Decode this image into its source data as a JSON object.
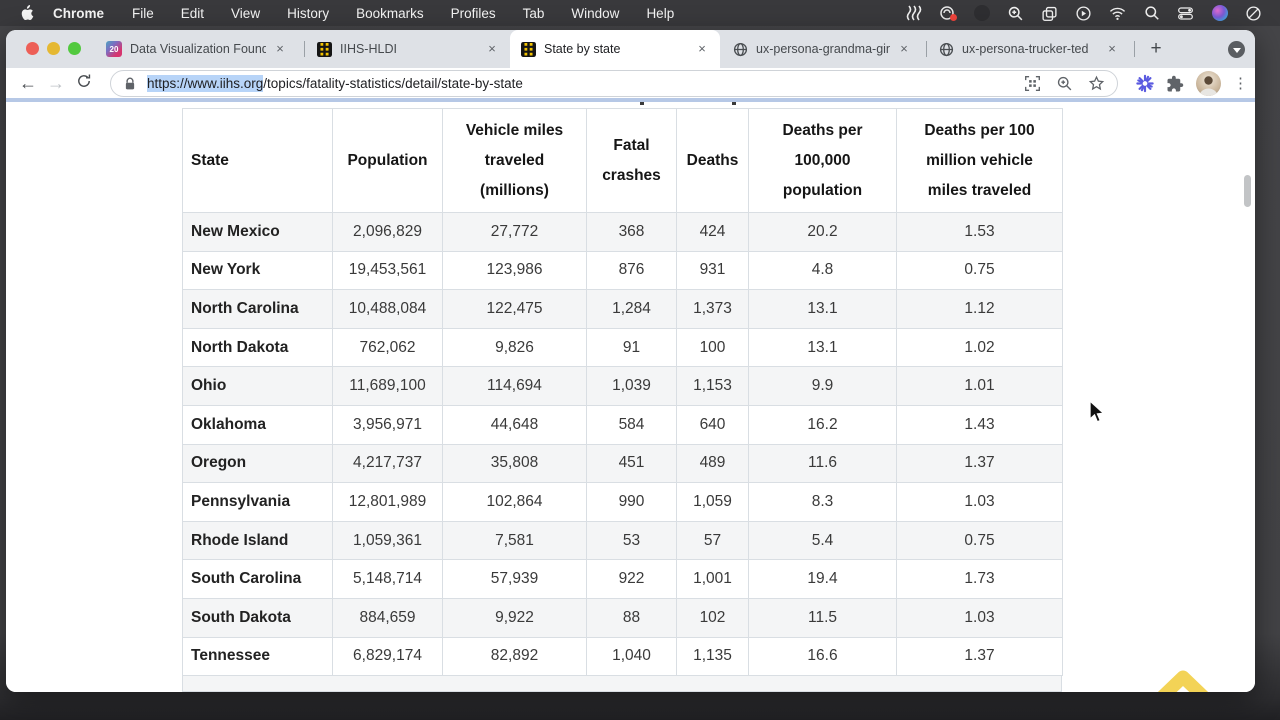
{
  "menubar": {
    "app_name": "Chrome",
    "items": [
      "File",
      "Edit",
      "View",
      "History",
      "Bookmarks",
      "Profiles",
      "Tab",
      "Window",
      "Help"
    ],
    "status_icons": [
      "waves-icon",
      "screen-record-red-dot-icon",
      "dimmed-app-icon",
      "magnifier-app-icon",
      "stacked-windows-icon",
      "play-circle-icon",
      "wifi-icon",
      "spotlight-search-icon",
      "control-center-icon",
      "siri-icon",
      "do-not-disturb-icon"
    ]
  },
  "tabs": [
    {
      "label": "Data Visualization Founda",
      "favicon": "calendar-20-icon",
      "active": false
    },
    {
      "label": "IIHS-HLDI",
      "favicon": "iihs-icon",
      "active": false
    },
    {
      "label": "State by state",
      "favicon": "iihs-icon",
      "active": true
    },
    {
      "label": "ux-persona-grandma-gin",
      "favicon": "globe-icon",
      "active": false
    },
    {
      "label": "ux-persona-trucker-ted",
      "favicon": "globe-icon",
      "active": false
    }
  ],
  "icons": {
    "close": "×",
    "new_tab": "+",
    "tab1_badge": "20",
    "overflow_menu": "⋮"
  },
  "toolbar": {
    "url_selected": "https://www.iihs.org",
    "url_path": "/topics/fatality-statistics/detail/state-by-state"
  },
  "table": {
    "headers": [
      "State",
      "Population",
      "Vehicle miles traveled (millions)",
      "Fatal crashes",
      "Deaths",
      "Deaths per 100,000 population",
      "Deaths per 100 million vehicle miles traveled"
    ],
    "rows": [
      [
        "New Mexico",
        "2,096,829",
        "27,772",
        "368",
        "424",
        "20.2",
        "1.53"
      ],
      [
        "New York",
        "19,453,561",
        "123,986",
        "876",
        "931",
        "4.8",
        "0.75"
      ],
      [
        "North Carolina",
        "10,488,084",
        "122,475",
        "1,284",
        "1,373",
        "13.1",
        "1.12"
      ],
      [
        "North Dakota",
        "762,062",
        "9,826",
        "91",
        "100",
        "13.1",
        "1.02"
      ],
      [
        "Ohio",
        "11,689,100",
        "114,694",
        "1,039",
        "1,153",
        "9.9",
        "1.01"
      ],
      [
        "Oklahoma",
        "3,956,971",
        "44,648",
        "584",
        "640",
        "16.2",
        "1.43"
      ],
      [
        "Oregon",
        "4,217,737",
        "35,808",
        "451",
        "489",
        "11.6",
        "1.37"
      ],
      [
        "Pennsylvania",
        "12,801,989",
        "102,864",
        "990",
        "1,059",
        "8.3",
        "1.03"
      ],
      [
        "Rhode Island",
        "1,059,361",
        "7,581",
        "53",
        "57",
        "5.4",
        "0.75"
      ],
      [
        "South Carolina",
        "5,148,714",
        "57,939",
        "922",
        "1,001",
        "19.4",
        "1.73"
      ],
      [
        "South Dakota",
        "884,659",
        "9,922",
        "88",
        "102",
        "11.5",
        "1.03"
      ],
      [
        "Tennessee",
        "6,829,174",
        "82,892",
        "1,040",
        "1,135",
        "16.6",
        "1.37"
      ]
    ]
  }
}
